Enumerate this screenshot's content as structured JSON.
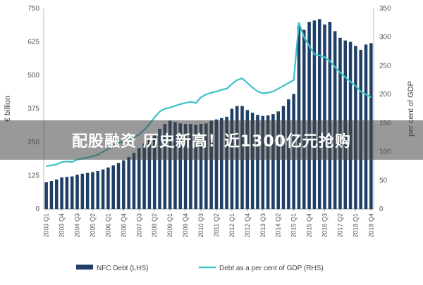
{
  "banner": {
    "text": "配股融资 历史新高！近1300亿元抢购"
  },
  "chart_data": {
    "type": "bar",
    "left_axis": {
      "label": "€ billion",
      "ylim": [
        0,
        750
      ],
      "ticks": [
        0,
        125,
        250,
        375,
        500,
        625,
        750
      ]
    },
    "right_axis": {
      "label": "per cent of GDP",
      "ylim": [
        0,
        350
      ],
      "ticks": [
        0,
        50,
        100,
        150,
        200,
        250,
        300,
        350
      ]
    },
    "x_ticks": [
      "2003 Q1",
      "2003 Q4",
      "2004 Q3",
      "2005 Q2",
      "2006 Q1",
      "2006 Q4",
      "2007 Q3",
      "2008 Q2",
      "2009 Q1",
      "2009 Q4",
      "2010 Q3",
      "2011 Q2",
      "2012 Q1",
      "2012 Q4",
      "2013 Q3",
      "2014 Q2",
      "2015 Q1",
      "2015 Q4",
      "2016 Q3",
      "2017 Q2",
      "2018 Q1",
      "2018 Q4"
    ],
    "x": [
      "2003 Q1",
      "2003 Q2",
      "2003 Q3",
      "2003 Q4",
      "2004 Q1",
      "2004 Q2",
      "2004 Q3",
      "2004 Q4",
      "2005 Q1",
      "2005 Q2",
      "2005 Q3",
      "2005 Q4",
      "2006 Q1",
      "2006 Q2",
      "2006 Q3",
      "2006 Q4",
      "2007 Q1",
      "2007 Q2",
      "2007 Q3",
      "2007 Q4",
      "2008 Q1",
      "2008 Q2",
      "2008 Q3",
      "2008 Q4",
      "2009 Q1",
      "2009 Q2",
      "2009 Q3",
      "2009 Q4",
      "2010 Q1",
      "2010 Q2",
      "2010 Q3",
      "2010 Q4",
      "2011 Q1",
      "2011 Q2",
      "2011 Q3",
      "2011 Q4",
      "2012 Q1",
      "2012 Q2",
      "2012 Q3",
      "2012 Q4",
      "2013 Q1",
      "2013 Q2",
      "2013 Q3",
      "2013 Q4",
      "2014 Q1",
      "2014 Q2",
      "2014 Q3",
      "2014 Q4",
      "2015 Q1",
      "2015 Q2",
      "2015 Q3",
      "2015 Q4",
      "2016 Q1",
      "2016 Q2",
      "2016 Q3",
      "2016 Q4",
      "2017 Q1",
      "2017 Q2",
      "2017 Q3",
      "2017 Q4",
      "2018 Q1",
      "2018 Q2",
      "2018 Q3",
      "2018 Q4"
    ],
    "series": [
      {
        "name": "NFC Debt (LHS)",
        "type": "bar",
        "axis": "left",
        "color": "#1f3f66",
        "values": [
          100,
          105,
          110,
          118,
          120,
          122,
          128,
          132,
          135,
          138,
          142,
          148,
          155,
          163,
          172,
          182,
          195,
          210,
          228,
          245,
          262,
          280,
          300,
          318,
          330,
          325,
          320,
          318,
          318,
          315,
          318,
          320,
          330,
          335,
          340,
          345,
          375,
          385,
          385,
          370,
          360,
          352,
          348,
          350,
          355,
          365,
          385,
          410,
          430,
          685,
          670,
          700,
          705,
          710,
          690,
          700,
          665,
          640,
          630,
          625,
          610,
          595,
          615,
          620
        ]
      },
      {
        "name": "Debt as a per cent of GDP (RHS)",
        "type": "line",
        "axis": "right",
        "color": "#3cc2c8",
        "values": [
          75,
          76,
          78,
          82,
          83,
          82,
          86,
          88,
          90,
          92,
          95,
          100,
          105,
          110,
          115,
          118,
          122,
          125,
          130,
          138,
          148,
          160,
          170,
          175,
          177,
          180,
          183,
          185,
          187,
          185,
          195,
          200,
          203,
          205,
          208,
          210,
          218,
          225,
          228,
          220,
          212,
          205,
          202,
          203,
          205,
          210,
          215,
          220,
          225,
          325,
          300,
          285,
          270,
          268,
          265,
          258,
          248,
          238,
          230,
          222,
          215,
          205,
          200,
          195
        ]
      }
    ],
    "legend": {
      "position": "bottom",
      "entries": [
        "NFC Debt (LHS)",
        "Debt as a per cent of GDP (RHS)"
      ]
    },
    "grid": false
  }
}
